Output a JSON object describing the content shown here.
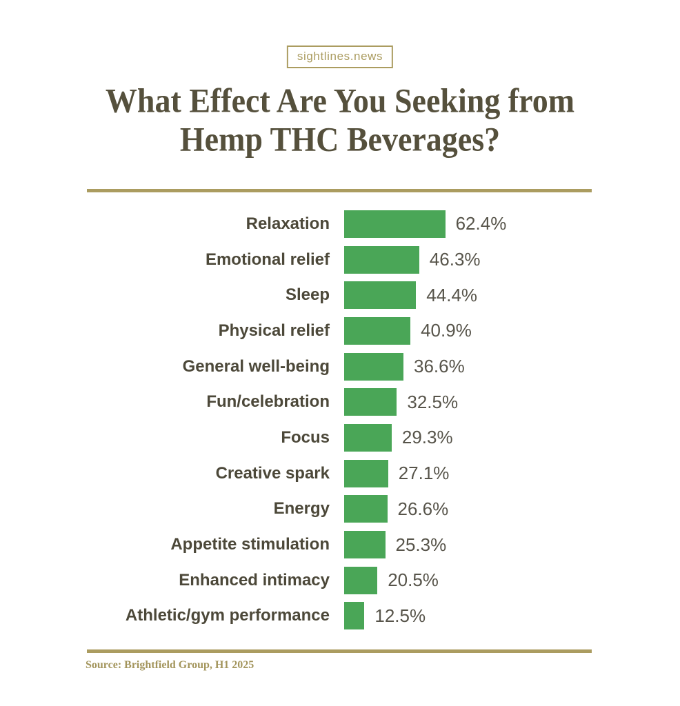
{
  "page": {
    "background": "#ffffff"
  },
  "header": {
    "badge": "sightlines.news",
    "title_line1": "What Effect Are You Seeking from",
    "title_line2": "Hemp THC Beverages?"
  },
  "footer": {
    "source": "Source: Brightfield Group, H1 2025"
  },
  "colors": {
    "page_bg": "#ffffff",
    "bar_green": "#4aa657",
    "label_text": "#4c4839",
    "value_text": "#57544a",
    "title_text": "#55503c",
    "gold": "#ab9c60",
    "source_text": "#a3955c"
  },
  "chart_data": {
    "type": "bar",
    "orientation": "horizontal",
    "title": "What Effect Are You Seeking from Hemp THC Beverages?",
    "categories": [
      "Relaxation",
      "Emotional relief",
      "Sleep",
      "Physical relief",
      "General well-being",
      "Fun/celebration",
      "Focus",
      "Creative spark",
      "Energy",
      "Appetite stimulation",
      "Enhanced intimacy",
      "Athletic/gym performance"
    ],
    "values": [
      62.4,
      46.3,
      44.4,
      40.9,
      36.6,
      32.5,
      29.3,
      27.1,
      26.6,
      25.3,
      20.5,
      12.5
    ],
    "value_labels": [
      "62.4%",
      "46.3%",
      "44.4%",
      "40.9%",
      "36.6%",
      "32.5%",
      "29.3%",
      "27.1%",
      "26.6%",
      "25.3%",
      "20.5%",
      "12.5%"
    ],
    "value_unit": "%",
    "xlabel": "",
    "ylabel": "",
    "xlim": [
      0,
      65
    ],
    "grid": false,
    "legend": false,
    "axis_ticks_visible": false,
    "bar_color": "#4aa657",
    "source": "Source: Brightfield Group, H1 2025"
  }
}
